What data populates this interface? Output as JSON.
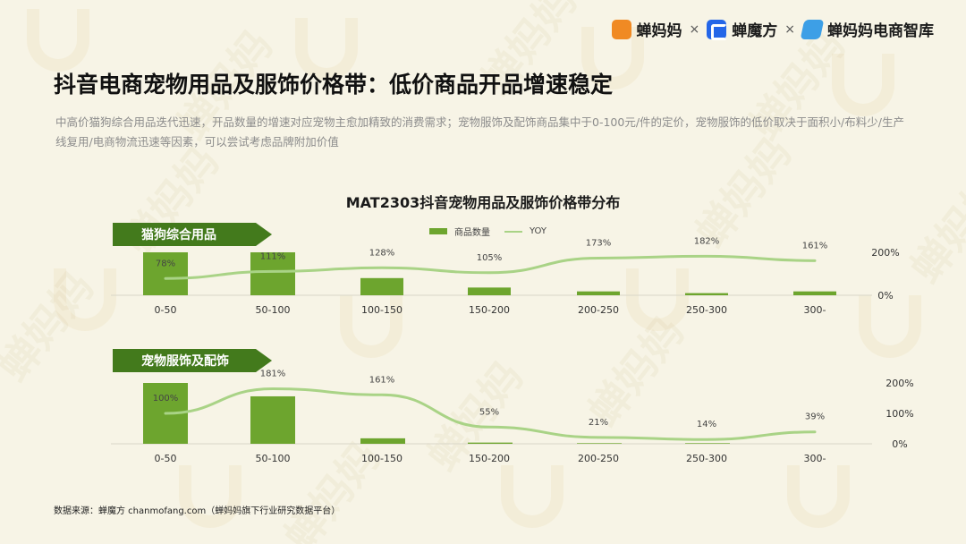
{
  "header": {
    "brand1": "蝉妈妈",
    "brand2": "蝉魔方",
    "brand3": "蝉妈妈电商智库",
    "sep": "×",
    "watermark": "蝉妈妈"
  },
  "title": "抖音电商宠物用品及服饰价格带：低价商品开品增速稳定",
  "subtitle": "中高价猫狗综合用品迭代迅速，开品数量的增速对应宠物主愈加精致的消费需求；宠物服饰及配饰商品集中于0-100元/件的定价，宠物服饰的低价取决于面积小/布料少/生产线复用/电商物流迅速等因素，可以尝试考虑品牌附加价值",
  "chart_title": "MAT2303抖音宠物用品及服饰价格带分布",
  "legend": {
    "bar": "商品数量",
    "line": "YOY"
  },
  "colors": {
    "bar": "#6da52e",
    "line": "#a9d386",
    "tag": "#437a1c",
    "background": "#f7f4e6"
  },
  "chart_data": [
    {
      "type": "bar",
      "name": "猫狗综合用品",
      "categories": [
        "0-50",
        "50-100",
        "100-150",
        "150-200",
        "200-250",
        "250-300",
        "300-"
      ],
      "series": [
        {
          "name": "商品数量",
          "type": "bar",
          "values": [
            100,
            100,
            40,
            18,
            9,
            5,
            9
          ]
        },
        {
          "name": "YOY",
          "type": "line",
          "values": [
            78,
            111,
            128,
            105,
            173,
            182,
            161
          ],
          "labels": [
            "78%",
            "111%",
            "128%",
            "105%",
            "173%",
            "182%",
            "161%"
          ]
        }
      ],
      "y2_ticks": [
        "200%",
        "0%"
      ],
      "y2lim": [
        0,
        200
      ]
    },
    {
      "type": "bar",
      "name": "宠物服饰及配饰",
      "categories": [
        "0-50",
        "50-100",
        "100-150",
        "150-200",
        "200-250",
        "250-300",
        "300-"
      ],
      "series": [
        {
          "name": "商品数量",
          "type": "bar",
          "values": [
            100,
            78,
            9,
            2,
            1,
            1,
            0
          ]
        },
        {
          "name": "YOY",
          "type": "line",
          "values": [
            100,
            181,
            161,
            55,
            21,
            14,
            39
          ],
          "labels": [
            "100%",
            "181%",
            "161%",
            "55%",
            "21%",
            "14%",
            "39%"
          ]
        }
      ],
      "y2_ticks": [
        "200%",
        "100%",
        "0%"
      ],
      "y2lim": [
        0,
        200
      ]
    }
  ],
  "source": "数据来源：蝉魔方 chanmofang.com（蝉妈妈旗下行业研究数据平台）"
}
